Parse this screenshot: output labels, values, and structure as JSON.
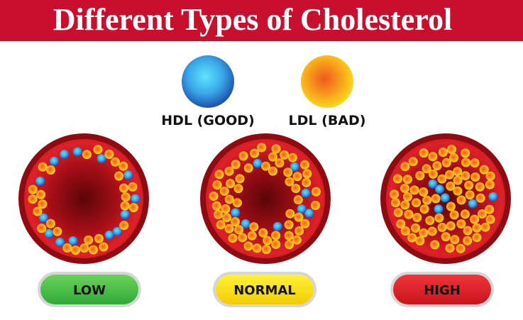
{
  "header": {
    "title": "Different Types of Cholesterol"
  },
  "legend": [
    {
      "label": "HDL (GOOD)"
    },
    {
      "label": "LDL (BAD)"
    }
  ],
  "panels": [
    {
      "label": "LOW"
    },
    {
      "label": "NORMAL"
    },
    {
      "label": "HIGH"
    }
  ]
}
